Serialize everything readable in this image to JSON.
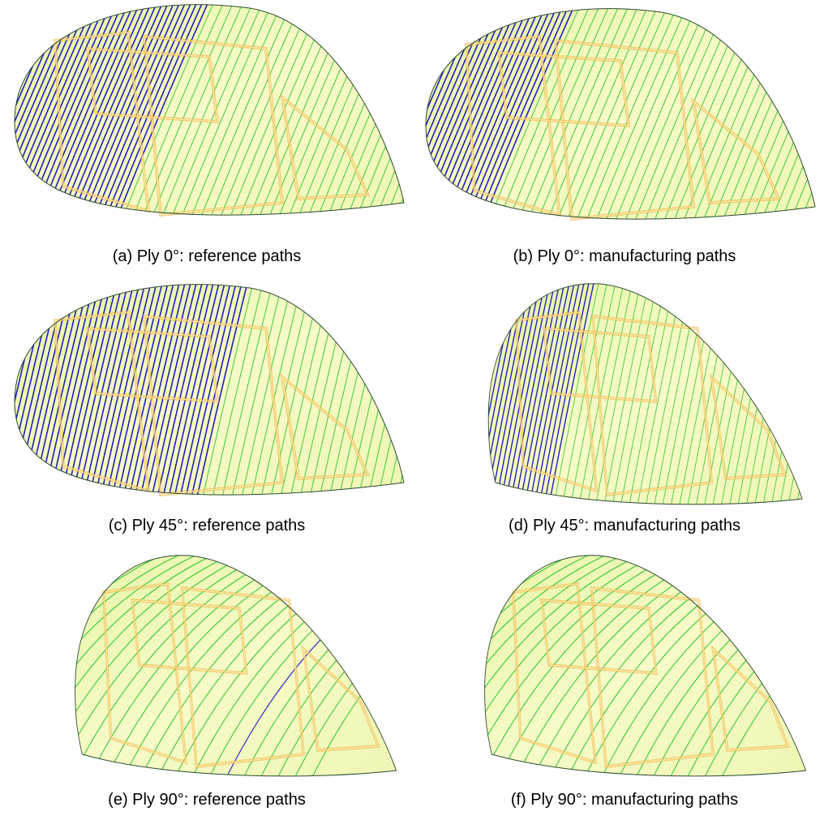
{
  "panels": [
    {
      "caption": "(a) Ply 0°: reference paths"
    },
    {
      "caption": "(b) Ply 0°: manufacturing paths"
    },
    {
      "caption": "(c) Ply 45°: reference paths"
    },
    {
      "caption": "(d) Ply 45°: manufacturing paths"
    },
    {
      "caption": "(e) Ply 90°: reference paths"
    },
    {
      "caption": "(f) Ply 90°: manufacturing paths"
    }
  ]
}
